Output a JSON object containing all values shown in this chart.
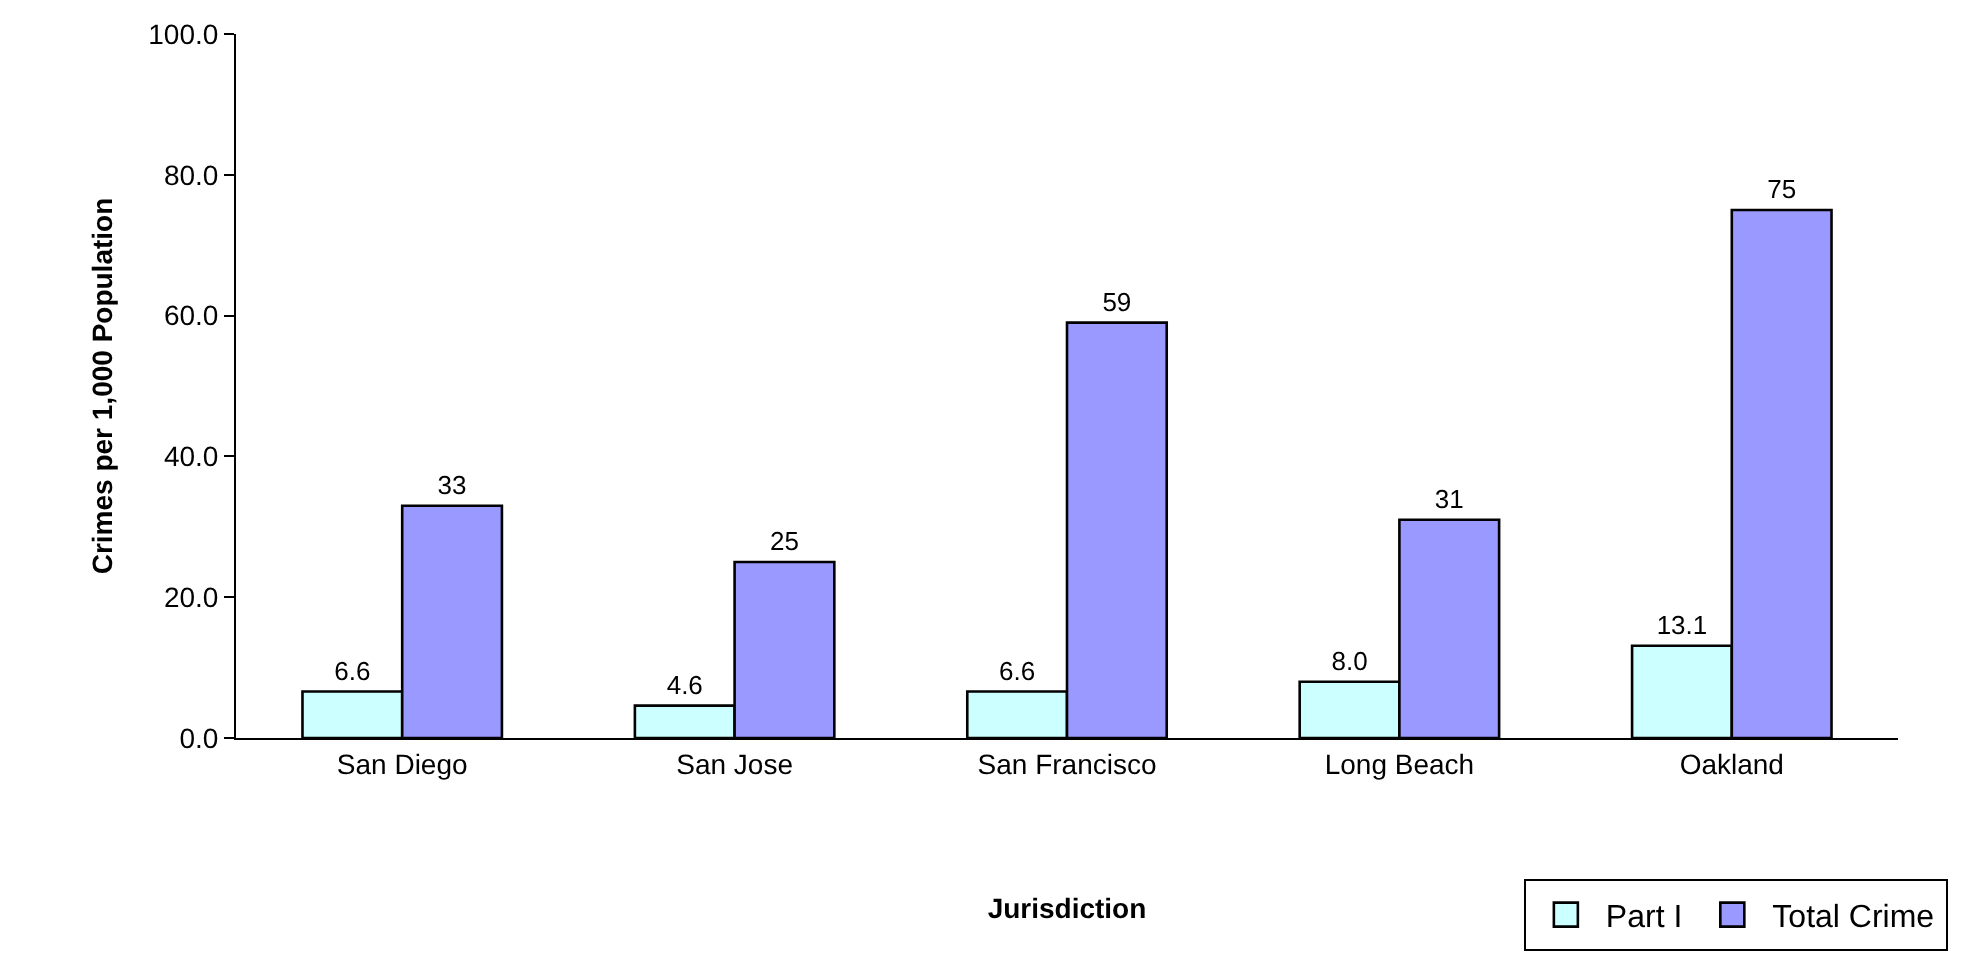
{
  "chart_data": {
    "type": "bar",
    "xlabel": "Jurisdiction",
    "ylabel": "Crimes per 1,000 Population",
    "categories": [
      "San Diego",
      "San Jose",
      "San Francisco",
      "Long Beach",
      "Oakland"
    ],
    "series": [
      {
        "name": "Part I",
        "color": "#ccffff",
        "values": [
          6.6,
          4.6,
          6.6,
          8.0,
          13.1
        ],
        "value_labels": [
          "6.6",
          "4.6",
          "6.6",
          "8.0",
          "13.1"
        ]
      },
      {
        "name": "Total Crime",
        "color": "#9999ff",
        "values": [
          33,
          25,
          59,
          31,
          75
        ],
        "value_labels": [
          "33",
          "25",
          "59",
          "31",
          "75"
        ]
      }
    ],
    "ylim": [
      0,
      100
    ],
    "yticks": [
      {
        "value": 0,
        "label": "0.0"
      },
      {
        "value": 20,
        "label": "20.0"
      },
      {
        "value": 40,
        "label": "40.0"
      },
      {
        "value": 60,
        "label": "60.0"
      },
      {
        "value": 80,
        "label": "80.0"
      },
      {
        "value": 100,
        "label": "100.0"
      }
    ],
    "grid": false,
    "legend": "bottom right"
  }
}
